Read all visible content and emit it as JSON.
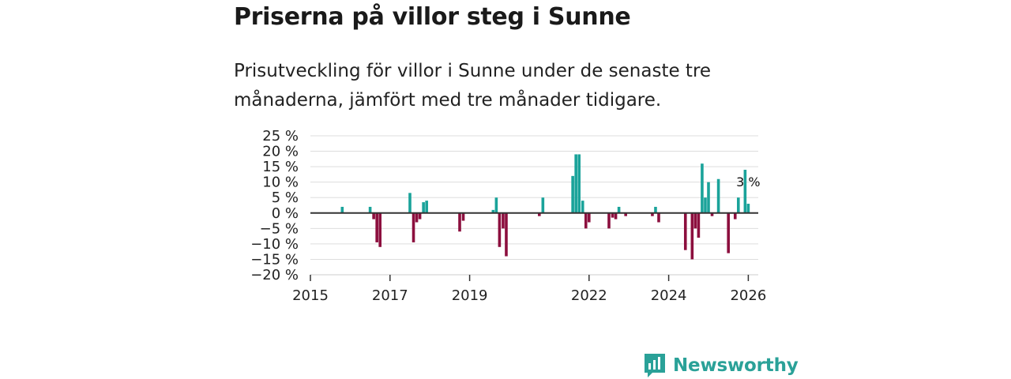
{
  "title": "Priserna på villor steg i Sunne",
  "subtitle": "Prisutveckling för villor i Sunne under de senaste tre månaderna, jämfört med tre månader tidigare.",
  "brand": {
    "name": "Newsworthy"
  },
  "colors": {
    "positive": "#1aa39a",
    "negative": "#8c0f3e",
    "grid": "#dddddd",
    "zero": "#333333",
    "brand": "#2aa198"
  },
  "chart_data": {
    "type": "bar",
    "title": "Priserna på villor steg i Sunne",
    "xlabel": "",
    "ylabel": "",
    "ylim": [
      -20,
      25
    ],
    "xlim": [
      2015.0,
      2026.25
    ],
    "y_ticks": [
      25,
      20,
      15,
      10,
      5,
      0,
      -5,
      -10,
      -15,
      -20
    ],
    "y_tick_labels": [
      "25 %",
      "20 %",
      "15 %",
      "10 %",
      "5 %",
      "0 %",
      "−5 %",
      "−10 %",
      "−15 %",
      "−20 %"
    ],
    "x_ticks": [
      2015,
      2017,
      2019,
      2022,
      2024,
      2026
    ],
    "x_tick_labels": [
      "2015",
      "2017",
      "2019",
      "2022",
      "2024",
      "2026"
    ],
    "grid": true,
    "last_value_label": "3 %",
    "points": [
      {
        "x": 2015.8,
        "y": 2
      },
      {
        "x": 2016.5,
        "y": 2
      },
      {
        "x": 2016.59,
        "y": -2
      },
      {
        "x": 2016.67,
        "y": -9.5
      },
      {
        "x": 2016.75,
        "y": -11
      },
      {
        "x": 2017.5,
        "y": 6.5
      },
      {
        "x": 2017.59,
        "y": -9.5
      },
      {
        "x": 2017.67,
        "y": -3
      },
      {
        "x": 2017.75,
        "y": -2
      },
      {
        "x": 2017.84,
        "y": 3.5
      },
      {
        "x": 2017.92,
        "y": 4
      },
      {
        "x": 2018.75,
        "y": -6
      },
      {
        "x": 2018.84,
        "y": -2.5
      },
      {
        "x": 2019.59,
        "y": 1
      },
      {
        "x": 2019.67,
        "y": 5
      },
      {
        "x": 2019.75,
        "y": -11
      },
      {
        "x": 2019.84,
        "y": -5
      },
      {
        "x": 2019.92,
        "y": -14
      },
      {
        "x": 2020.75,
        "y": -1
      },
      {
        "x": 2020.84,
        "y": 5
      },
      {
        "x": 2021.59,
        "y": 12
      },
      {
        "x": 2021.67,
        "y": 19
      },
      {
        "x": 2021.75,
        "y": 19
      },
      {
        "x": 2021.84,
        "y": 4
      },
      {
        "x": 2021.92,
        "y": -5
      },
      {
        "x": 2022.0,
        "y": -3
      },
      {
        "x": 2022.5,
        "y": -5
      },
      {
        "x": 2022.59,
        "y": -1.5
      },
      {
        "x": 2022.67,
        "y": -2
      },
      {
        "x": 2022.75,
        "y": 2
      },
      {
        "x": 2022.92,
        "y": -1
      },
      {
        "x": 2023.59,
        "y": -1
      },
      {
        "x": 2023.67,
        "y": 2
      },
      {
        "x": 2023.75,
        "y": -3
      },
      {
        "x": 2024.42,
        "y": -12
      },
      {
        "x": 2024.59,
        "y": -15
      },
      {
        "x": 2024.67,
        "y": -5
      },
      {
        "x": 2024.75,
        "y": -8
      },
      {
        "x": 2024.84,
        "y": 16
      },
      {
        "x": 2024.92,
        "y": 5
      },
      {
        "x": 2025.0,
        "y": 10
      },
      {
        "x": 2025.09,
        "y": -1
      },
      {
        "x": 2025.25,
        "y": 11
      },
      {
        "x": 2025.5,
        "y": -13
      },
      {
        "x": 2025.67,
        "y": -2
      },
      {
        "x": 2025.75,
        "y": 5
      },
      {
        "x": 2025.92,
        "y": 14
      },
      {
        "x": 2026.0,
        "y": 3
      }
    ]
  }
}
